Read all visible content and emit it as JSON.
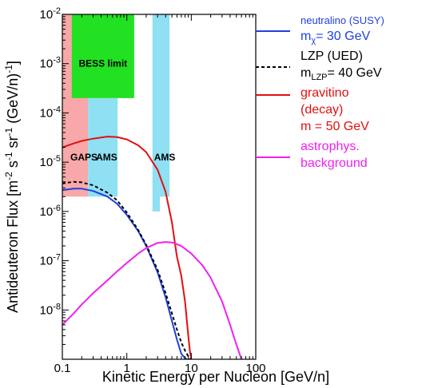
{
  "chart_data": {
    "type": "line",
    "xlabel": "Kinetic Energy per Nucleon [GeV/n]",
    "ylabel": [
      "Antideuteron Flux [m",
      "-2",
      " s",
      "-1",
      " sr",
      "-1",
      " (GeV/n)",
      "-1",
      "]"
    ],
    "xscale": "log",
    "yscale": "log",
    "xlim": [
      0.1,
      100
    ],
    "ylim": [
      1e-09,
      0.01
    ],
    "x_ticks": [
      "0.1",
      "1",
      "10",
      "100"
    ],
    "y_ticks": [
      {
        "value": 1e-08,
        "mant": "10",
        "exp": "-8"
      },
      {
        "value": 1e-07,
        "mant": "10",
        "exp": "-7"
      },
      {
        "value": 1e-06,
        "mant": "10",
        "exp": "-6"
      },
      {
        "value": 1e-05,
        "mant": "10",
        "exp": "-5"
      },
      {
        "value": 0.0001,
        "mant": "10",
        "exp": "-4"
      },
      {
        "value": 0.001,
        "mant": "10",
        "exp": "-3"
      },
      {
        "value": 0.01,
        "mant": "10",
        "exp": "-2"
      }
    ],
    "regions": [
      {
        "label": "GAPS",
        "color": "#f8a8a8",
        "x": [
          0.1,
          0.25
        ],
        "y": [
          2e-06,
          0.01
        ]
      },
      {
        "label": "AMS",
        "color": "#8ee0f2",
        "x": [
          0.25,
          0.72
        ],
        "y": [
          2e-06,
          0.0002
        ]
      },
      {
        "label": "BESS limit",
        "color": "#22e022",
        "x": [
          0.14,
          1.3
        ],
        "y": [
          0.0002,
          0.01
        ]
      },
      {
        "label": "AMS",
        "color": "#8ee0f2",
        "x": [
          2.5,
          3.25
        ],
        "y": [
          1e-06,
          0.01
        ]
      },
      {
        "label": "",
        "color": "#8ee0f2",
        "x": [
          3.25,
          4.6
        ],
        "y": [
          2e-06,
          0.01
        ]
      }
    ],
    "series": [
      {
        "name": "neutralino (SUSY)",
        "color": "#1f3fe0",
        "dash": "none",
        "x": [
          0.1,
          0.15,
          0.2,
          0.3,
          0.5,
          0.7,
          1.0,
          1.5,
          2.0,
          3.0,
          4.0,
          5.0,
          6.0,
          7.0,
          8.0,
          8.6
        ],
        "y": [
          2.7e-06,
          2.9e-06,
          2.9e-06,
          2.6e-06,
          2e-06,
          1.45e-06,
          8.5e-07,
          4e-07,
          2e-07,
          5.8e-08,
          1.8e-08,
          6e-09,
          2.5e-09,
          1.3e-09,
          1.05e-09,
          1e-09
        ]
      },
      {
        "name": "LZP (UED)",
        "color": "#000000",
        "dash": "4,3",
        "x": [
          0.1,
          0.15,
          0.2,
          0.3,
          0.5,
          0.7,
          1.0,
          1.5,
          2.0,
          3.0,
          4.0,
          5.0,
          6.0,
          7.0,
          8.0,
          9.0,
          9.5
        ],
        "y": [
          3.7e-06,
          4e-06,
          3.9e-06,
          3.4e-06,
          2.4e-06,
          1.7e-06,
          9.5e-07,
          4.2e-07,
          2.1e-07,
          6.5e-08,
          2.2e-08,
          8.5e-09,
          4e-09,
          2.2e-09,
          1.5e-09,
          1.15e-09,
          1e-09
        ]
      },
      {
        "name": "gravitino (decay)",
        "color": "#e01010",
        "dash": "none",
        "x": [
          0.1,
          0.15,
          0.2,
          0.3,
          0.5,
          0.7,
          1.0,
          1.5,
          2.0,
          3.0,
          4.0,
          5.0,
          6.0,
          7.0,
          8.0,
          9.0,
          9.5,
          10.0
        ],
        "y": [
          2e-05,
          2.4e-05,
          2.7e-05,
          3e-05,
          3.3e-05,
          3.25e-05,
          2.9e-05,
          2.2e-05,
          1.6e-05,
          7e-06,
          2.5e-06,
          6e-07,
          1.2e-07,
          5e-08,
          1.5e-08,
          3e-09,
          1.5e-09,
          1e-09
        ]
      },
      {
        "name": "astrophys. background",
        "color": "#f020f0",
        "dash": "none",
        "x": [
          0.1,
          0.15,
          0.2,
          0.3,
          0.5,
          0.7,
          1.0,
          1.5,
          2.0,
          3.0,
          4.0,
          5.0,
          7.0,
          10.0,
          15.0,
          20.0,
          30.0,
          40.0,
          50.0,
          60.0
        ],
        "y": [
          5e-09,
          8.5e-09,
          1.3e-08,
          2.2e-08,
          4e-08,
          6e-08,
          9e-08,
          1.4e-07,
          1.8e-07,
          2.3e-07,
          2.4e-07,
          2.35e-07,
          2e-07,
          1.4e-07,
          8e-08,
          4.5e-08,
          1.5e-08,
          5e-09,
          2e-09,
          1e-09
        ]
      }
    ]
  },
  "legend": [
    {
      "lines": [
        {
          "text": "neutralino (SUSY)",
          "small": true
        },
        {
          "text": "m",
          "sub": "χ",
          "rest": "= 30 GeV"
        }
      ],
      "color": "#1f3fe0",
      "line_color": "#1f3fe0",
      "dash": "none"
    },
    {
      "lines": [
        {
          "text": "LZP (UED)"
        },
        {
          "text": "m",
          "sub": "LZP",
          "rest": "= 40 GeV"
        }
      ],
      "color": "#000000",
      "line_color": "#000000",
      "dash": "4,3"
    },
    {
      "lines": [
        {
          "text": "gravitino"
        },
        {
          "text": "(decay)"
        },
        {
          "text": "m = 50 GeV"
        }
      ],
      "color": "#e01010",
      "line_color": "#e01010",
      "dash": "none"
    },
    {
      "lines": [
        {
          "text": "astrophys."
        },
        {
          "text": "background"
        }
      ],
      "color": "#f020f0",
      "line_color": "#f020f0",
      "dash": "none"
    }
  ]
}
